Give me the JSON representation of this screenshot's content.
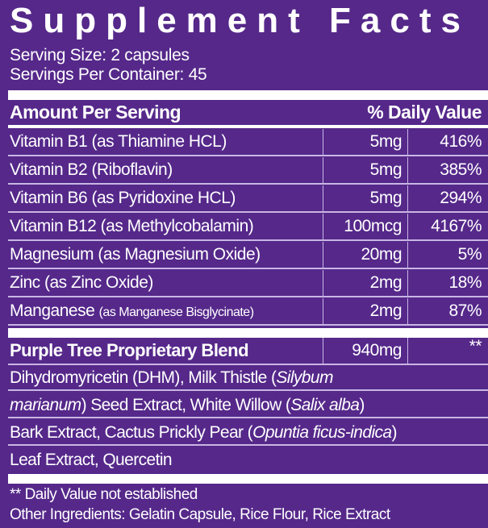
{
  "title": "Supplement Facts",
  "serving_size": "Serving Size: 2 capsules",
  "servings_per_container": "Servings Per Container: 45",
  "header": {
    "left": "Amount Per Serving",
    "right": "% Daily Value"
  },
  "nutrients": [
    {
      "name": "Vitamin B1 (as Thiamine HCL)",
      "amount": "5mg",
      "dv": "416%"
    },
    {
      "name": "Vitamin B2 (Riboflavin)",
      "amount": "5mg",
      "dv": "385%"
    },
    {
      "name": "Vitamin B6 (as Pyridoxine HCL)",
      "amount": "5mg",
      "dv": "294%"
    },
    {
      "name": "Vitamin B12 (as Methylcobalamin)",
      "amount": "100mcg",
      "dv": "4167%"
    },
    {
      "name": "Magnesium (as Magnesium Oxide)",
      "amount": "20mg",
      "dv": "5%"
    },
    {
      "name": "Zinc (as Zinc Oxide)",
      "amount": "2mg",
      "dv": "18%"
    },
    {
      "name": "Manganese",
      "name_detail": "(as Manganese Bisglycinate)",
      "amount": "2mg",
      "dv": "87%"
    }
  ],
  "blend": {
    "name": "Purple Tree Proprietary Blend",
    "amount": "940mg",
    "dv": "**"
  },
  "blend_ingredients": {
    "l1a": "Dihydromyricetin (DHM), Milk Thistle (",
    "l1b": "Silybum",
    "l2a": "marianum",
    "l2b": ") Seed Extract, White Willow (",
    "l2c": "Salix alba",
    "l2d": ")",
    "l3a": "Bark Extract, Cactus Prickly Pear (",
    "l3b": "Opuntia ficus-indica",
    "l3c": ")",
    "l4": "Leaf Extract, Quercetin"
  },
  "footnote": "** Daily Value not established",
  "other_ingredients": "Other Ingredients: Gelatin Capsule, Rice Flour, Rice Extract",
  "colors": {
    "background": "#55288a",
    "text": "#ffffff",
    "rule": "#c9b6e4"
  }
}
